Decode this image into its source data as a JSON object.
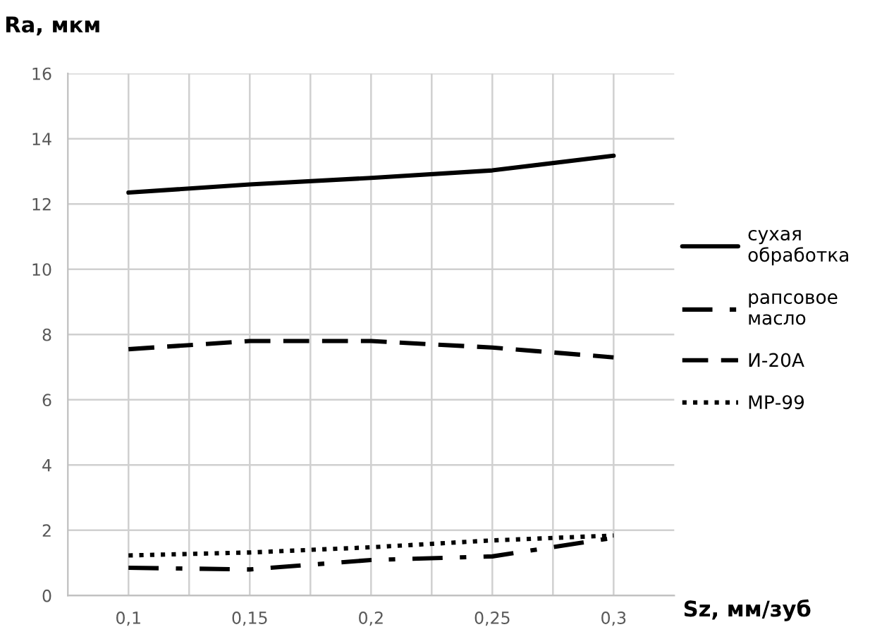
{
  "chart_data": {
    "type": "line",
    "xlabel": "Sz, мм/зуб",
    "ylabel": "Ra, мкм",
    "x": [
      0.1,
      0.15,
      0.2,
      0.25,
      0.3
    ],
    "xlim": [
      0.075,
      0.325
    ],
    "xticks": [
      {
        "value": 0.1,
        "label": "0,1"
      },
      {
        "value": 0.125,
        "label": null
      },
      {
        "value": 0.15,
        "label": "0,15"
      },
      {
        "value": 0.175,
        "label": null
      },
      {
        "value": 0.2,
        "label": "0,2"
      },
      {
        "value": 0.225,
        "label": null
      },
      {
        "value": 0.25,
        "label": "0,25"
      },
      {
        "value": 0.275,
        "label": null
      },
      {
        "value": 0.3,
        "label": "0,3"
      }
    ],
    "ylim": [
      0,
      16
    ],
    "yticks": [
      0,
      2,
      4,
      6,
      8,
      10,
      12,
      14,
      16
    ],
    "grid": true,
    "legend": "right",
    "marker": "none",
    "series": [
      {
        "name": "сухая\nобработка",
        "color": "#000000",
        "line_style": "solid",
        "values": [
          12.35,
          12.6,
          12.8,
          13.03,
          13.48
        ]
      },
      {
        "name": "рапсовое\nмасло",
        "color": "#000000",
        "line_style": "dashdot",
        "values": [
          0.85,
          0.8,
          1.09,
          1.2,
          1.77
        ]
      },
      {
        "name": "И-20А",
        "color": "#000000",
        "line_style": "dashed",
        "values": [
          7.55,
          7.8,
          7.8,
          7.6,
          7.3
        ]
      },
      {
        "name": "МР-99",
        "color": "#000000",
        "line_style": "dotted",
        "values": [
          1.23,
          1.32,
          1.48,
          1.69,
          1.84
        ]
      }
    ]
  }
}
